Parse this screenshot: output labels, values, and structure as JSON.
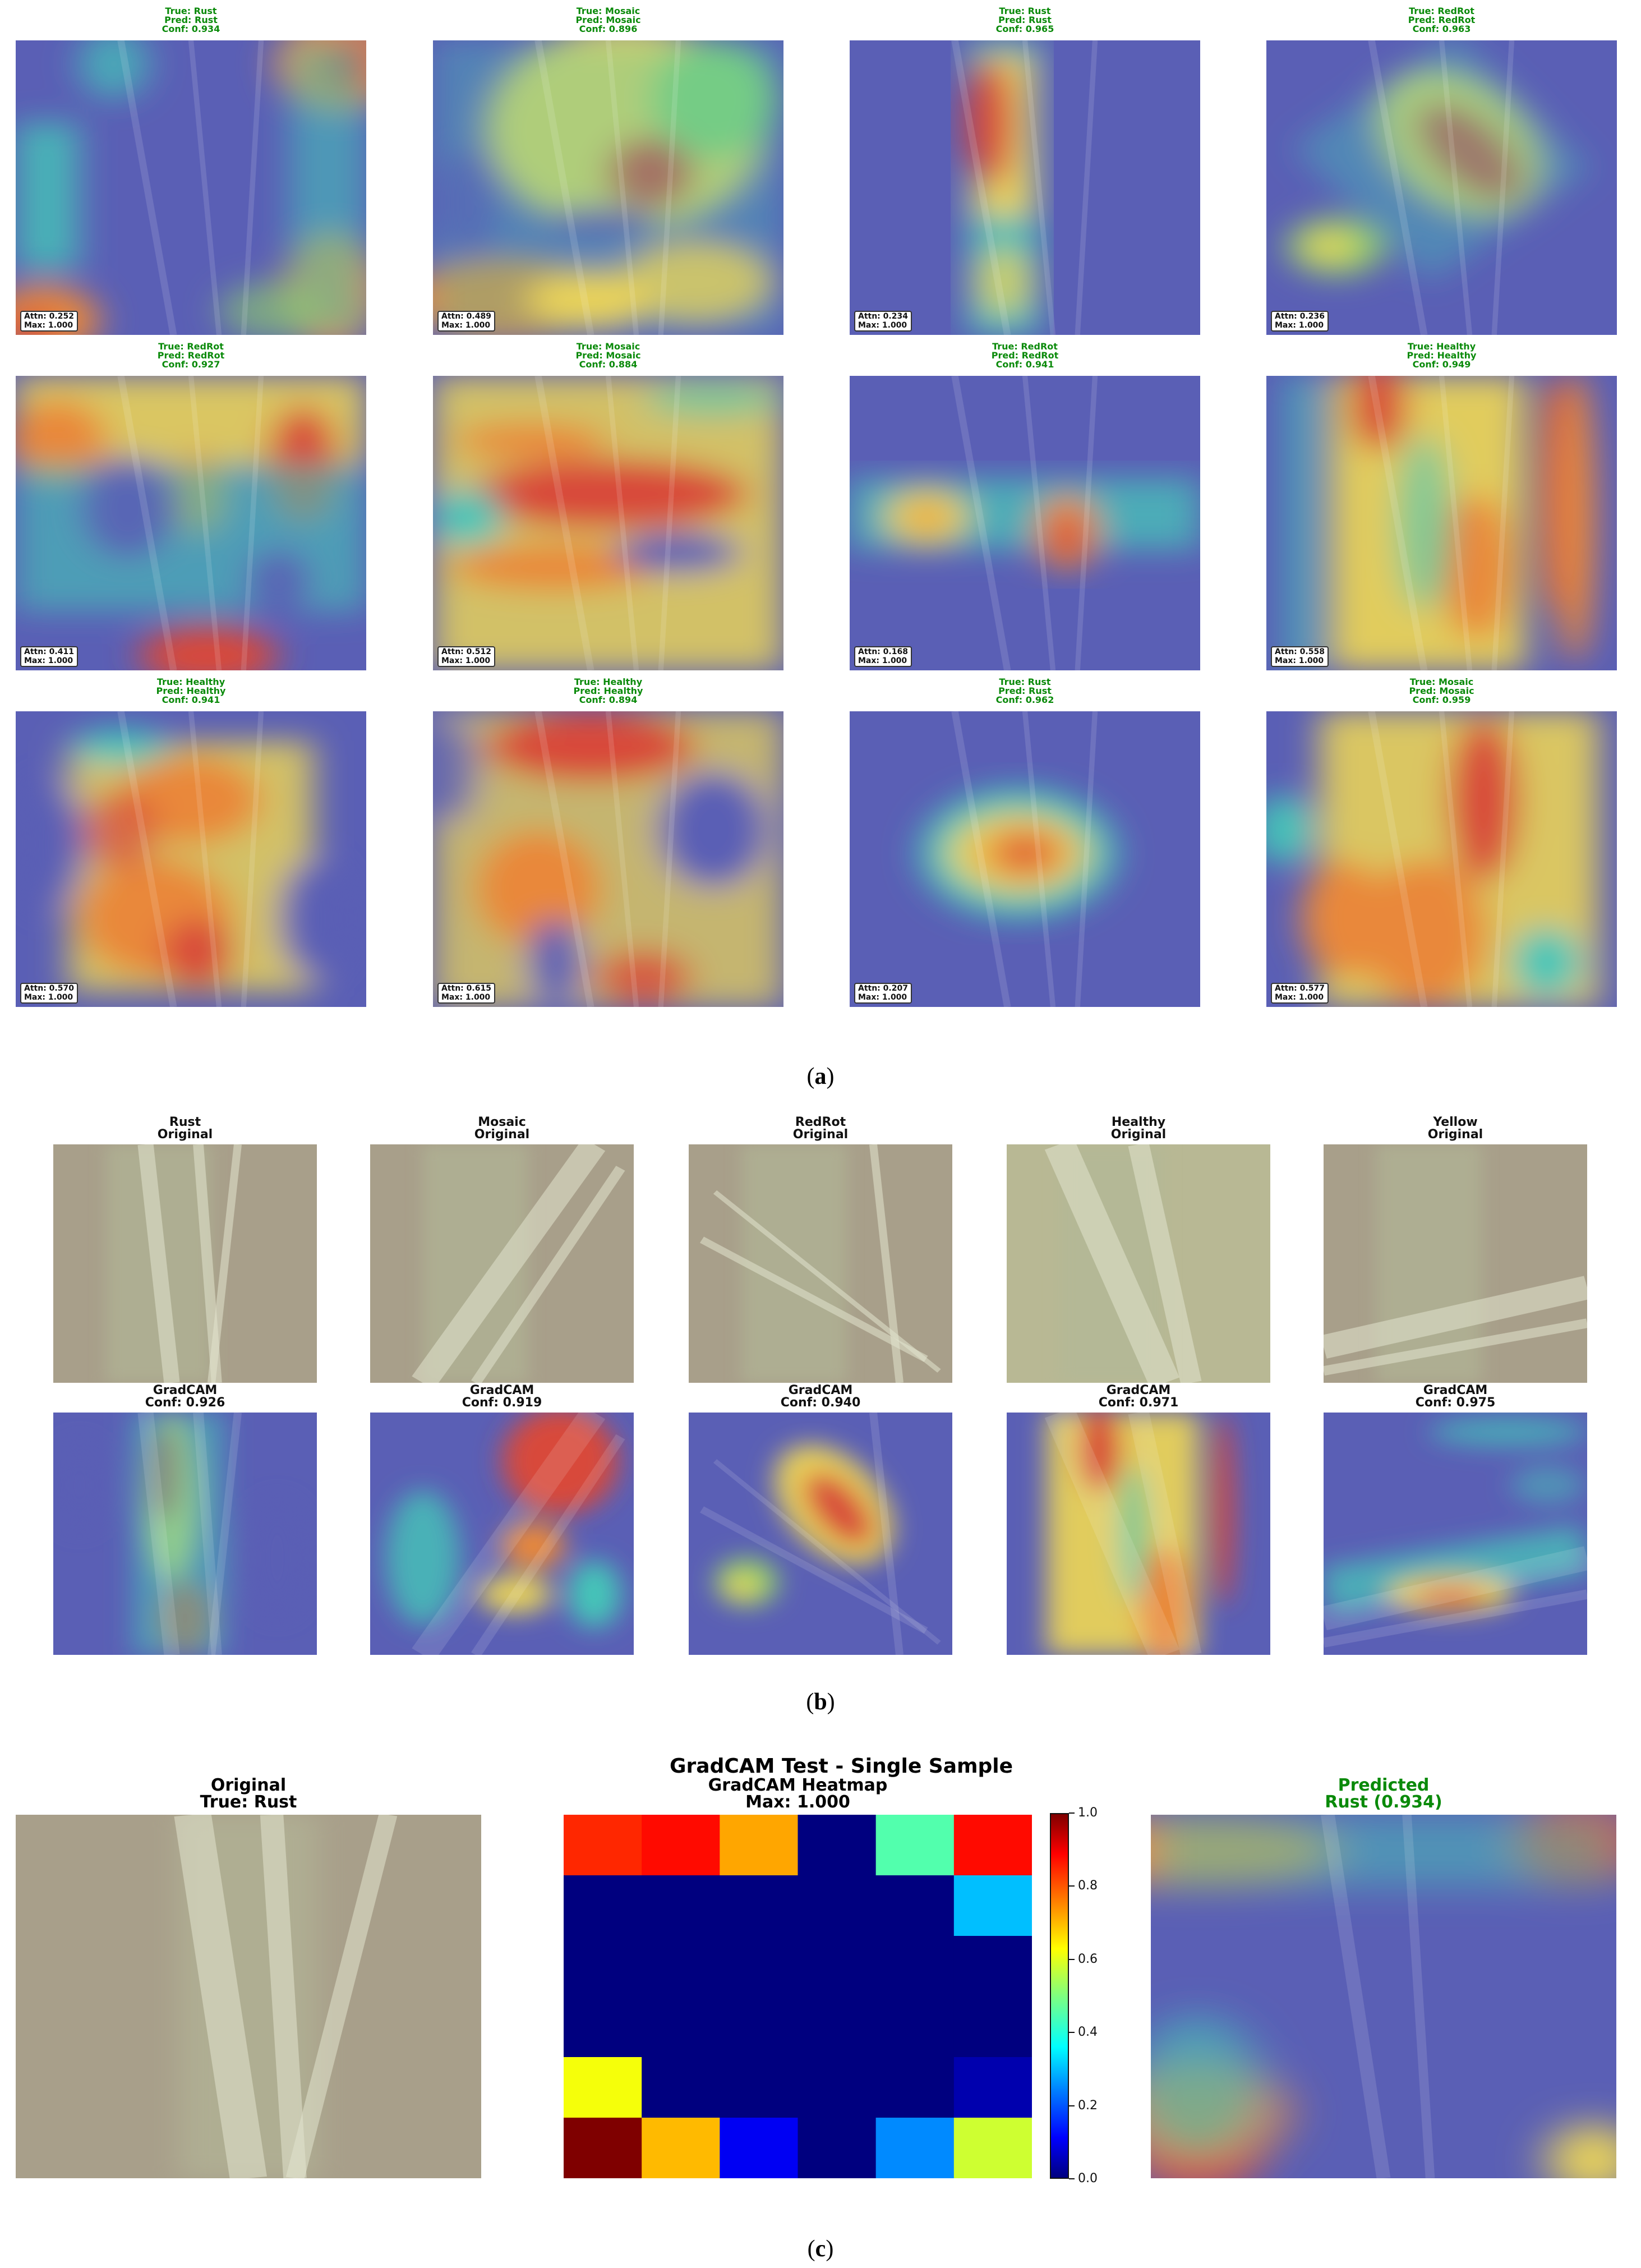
{
  "panel_a": {
    "caption": "a",
    "cells": [
      {
        "true": "True: Rust",
        "pred": "Pred: Rust",
        "conf": "Conf: 0.934",
        "attn": "Attn: 0.252",
        "max": "Max: 1.000"
      },
      {
        "true": "True: Mosaic",
        "pred": "Pred: Mosaic",
        "conf": "Conf: 0.896",
        "attn": "Attn: 0.489",
        "max": "Max: 1.000"
      },
      {
        "true": "True: Rust",
        "pred": "Pred: Rust",
        "conf": "Conf: 0.965",
        "attn": "Attn: 0.234",
        "max": "Max: 1.000"
      },
      {
        "true": "True: RedRot",
        "pred": "Pred: RedRot",
        "conf": "Conf: 0.963",
        "attn": "Attn: 0.236",
        "max": "Max: 1.000"
      },
      {
        "true": "True: RedRot",
        "pred": "Pred: RedRot",
        "conf": "Conf: 0.927",
        "attn": "Attn: 0.411",
        "max": "Max: 1.000"
      },
      {
        "true": "True: Mosaic",
        "pred": "Pred: Mosaic",
        "conf": "Conf: 0.884",
        "attn": "Attn: 0.512",
        "max": "Max: 1.000"
      },
      {
        "true": "True: RedRot",
        "pred": "Pred: RedRot",
        "conf": "Conf: 0.941",
        "attn": "Attn: 0.168",
        "max": "Max: 1.000"
      },
      {
        "true": "True: Healthy",
        "pred": "Pred: Healthy",
        "conf": "Conf: 0.949",
        "attn": "Attn: 0.558",
        "max": "Max: 1.000"
      },
      {
        "true": "True: Healthy",
        "pred": "Pred: Healthy",
        "conf": "Conf: 0.941",
        "attn": "Attn: 0.570",
        "max": "Max: 1.000"
      },
      {
        "true": "True: Healthy",
        "pred": "Pred: Healthy",
        "conf": "Conf: 0.894",
        "attn": "Attn: 0.615",
        "max": "Max: 1.000"
      },
      {
        "true": "True: Rust",
        "pred": "Pred: Rust",
        "conf": "Conf: 0.962",
        "attn": "Attn: 0.207",
        "max": "Max: 1.000"
      },
      {
        "true": "True: Mosaic",
        "pred": "Pred: Mosaic",
        "conf": "Conf: 0.959",
        "attn": "Attn: 0.577",
        "max": "Max: 1.000"
      }
    ]
  },
  "panel_b": {
    "caption": "b",
    "originals": [
      {
        "l1": "Rust",
        "l2": "Original"
      },
      {
        "l1": "Mosaic",
        "l2": "Original"
      },
      {
        "l1": "RedRot",
        "l2": "Original"
      },
      {
        "l1": "Healthy",
        "l2": "Original"
      },
      {
        "l1": "Yellow",
        "l2": "Original"
      }
    ],
    "gradcams": [
      {
        "l1": "GradCAM",
        "l2": "Conf: 0.926"
      },
      {
        "l1": "GradCAM",
        "l2": "Conf: 0.919"
      },
      {
        "l1": "GradCAM",
        "l2": "Conf: 0.940"
      },
      {
        "l1": "GradCAM",
        "l2": "Conf: 0.971"
      },
      {
        "l1": "GradCAM",
        "l2": "Conf: 0.975"
      }
    ]
  },
  "panel_c": {
    "caption": "c",
    "suptitle": "GradCAM Test - Single Sample",
    "original": {
      "l1": "Original",
      "l2": "True: Rust"
    },
    "heatmap": {
      "l1": "GradCAM Heatmap",
      "l2": "Max: 1.000"
    },
    "predicted": {
      "l1": "Predicted",
      "l2": "Rust (0.934)"
    },
    "colorbar_ticks": [
      "0.0",
      "0.2",
      "0.4",
      "0.6",
      "0.8",
      "1.0"
    ],
    "grid_values": [
      [
        0.85,
        0.88,
        0.72,
        0.0,
        0.45,
        0.88
      ],
      [
        0.0,
        0.0,
        0.0,
        0.0,
        0.0,
        0.3
      ],
      [
        0.0,
        0.0,
        0.0,
        0.0,
        0.0,
        0.0
      ],
      [
        0.0,
        0.0,
        0.0,
        0.0,
        0.0,
        0.0
      ],
      [
        0.62,
        0.0,
        0.0,
        0.0,
        0.0,
        0.04
      ],
      [
        1.0,
        0.7,
        0.1,
        0.0,
        0.25,
        0.58
      ]
    ],
    "colors": {
      "predicted_title": "#0a8a0a"
    }
  }
}
